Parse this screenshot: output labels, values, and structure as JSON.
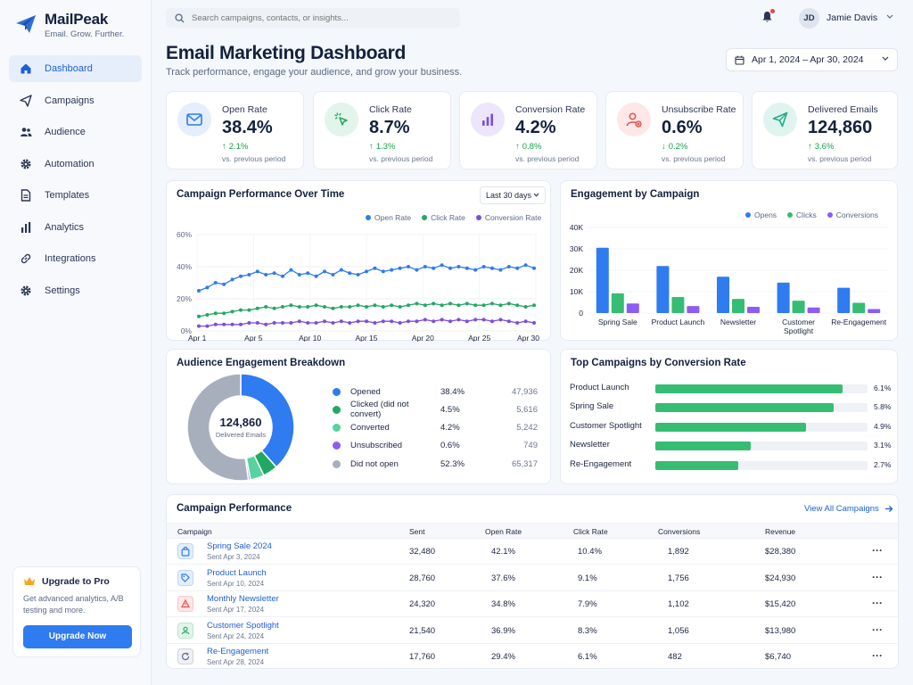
{
  "brand": {
    "name": "MailPeak",
    "tagline": "Email. Grow. Further."
  },
  "sidebar": {
    "items": [
      {
        "label": "Dashboard",
        "icon": "home-icon",
        "active": true
      },
      {
        "label": "Campaigns",
        "icon": "send-icon"
      },
      {
        "label": "Audience",
        "icon": "users-icon"
      },
      {
        "label": "Automation",
        "icon": "gear-icon"
      },
      {
        "label": "Templates",
        "icon": "document-icon"
      },
      {
        "label": "Analytics",
        "icon": "bar-chart-icon"
      },
      {
        "label": "Integrations",
        "icon": "link-icon"
      },
      {
        "label": "Settings",
        "icon": "settings-icon"
      }
    ],
    "upgrade": {
      "title": "Upgrade to Pro",
      "description": "Get advanced analytics, A/B testing and more.",
      "button": "Upgrade Now",
      "icon": "crown-icon"
    }
  },
  "header": {
    "search_placeholder": "Search campaigns, contacts, or insights...",
    "user": {
      "initials": "JD",
      "name": "Jamie Davis"
    }
  },
  "page": {
    "title": "Email Marketing Dashboard",
    "subtitle": "Track performance, engage your audience, and grow your business.",
    "date_range": "Apr 1, 2024 – Apr 30, 2024"
  },
  "kpis": [
    {
      "label": "Open Rate",
      "value": "38.4%",
      "delta": "2.1%",
      "direction": "up",
      "note": "vs. previous period",
      "icon": "envelope-icon",
      "color": "#2f7bf0",
      "bg": "#e4eefc"
    },
    {
      "label": "Click Rate",
      "value": "8.7%",
      "delta": "1.3%",
      "direction": "up",
      "note": "vs. previous period",
      "icon": "cursor-click-icon",
      "color": "#22a862",
      "bg": "#e2f5ea"
    },
    {
      "label": "Conversion Rate",
      "value": "4.2%",
      "delta": "0.8%",
      "direction": "up",
      "note": "vs. previous period",
      "icon": "bar-chart-icon",
      "color": "#7c4ddc",
      "bg": "#ede6fb"
    },
    {
      "label": "Unsubscribe Rate",
      "value": "0.6%",
      "delta": "0.2%",
      "direction": "down",
      "note": "vs. previous period",
      "icon": "user-remove-icon",
      "color": "#e04f4f",
      "bg": "#fde7e7"
    },
    {
      "label": "Delivered Emails",
      "value": "124,860",
      "delta": "3.6%",
      "direction": "up",
      "note": "vs. previous period",
      "icon": "paper-plane-icon",
      "color": "#1fae8a",
      "bg": "#dff4ee"
    }
  ],
  "performance": {
    "title": "Campaign Performance Over Time",
    "range_select": "Last 30 days",
    "chart_data": {
      "type": "line",
      "title": "Campaign Performance Over Time",
      "x_ticks": [
        "Apr 1",
        "Apr 5",
        "Apr 10",
        "Apr 15",
        "Apr 20",
        "Apr 25",
        "Apr 30"
      ],
      "y_ticks": [
        "0%",
        "20%",
        "40%",
        "60%"
      ],
      "ylim": [
        0,
        60
      ],
      "series": [
        {
          "name": "Open Rate",
          "color": "#2f7bf0",
          "values": [
            25,
            27,
            30,
            29,
            32,
            34,
            35,
            37,
            35,
            36,
            34,
            38,
            35,
            36,
            34,
            37,
            35,
            38,
            36,
            35,
            37,
            39,
            37,
            38,
            39,
            40,
            38,
            40,
            39,
            41,
            39,
            40,
            39,
            38,
            40,
            39,
            38,
            40,
            39,
            41,
            39
          ]
        },
        {
          "name": "Click Rate",
          "color": "#22a862",
          "values": [
            9,
            10,
            11,
            11,
            12,
            13,
            13,
            14,
            15,
            14,
            15,
            16,
            15,
            15,
            16,
            15,
            14,
            15,
            15,
            16,
            15,
            16,
            15,
            16,
            15,
            16,
            17,
            16,
            17,
            16,
            17,
            16,
            17,
            16,
            16,
            17,
            16,
            17,
            16,
            15,
            16
          ]
        },
        {
          "name": "Conversion Rate",
          "color": "#7c4ddc",
          "values": [
            3,
            3,
            4,
            4,
            4,
            4,
            5,
            5,
            4,
            5,
            5,
            5,
            6,
            5,
            5,
            6,
            5,
            6,
            5,
            6,
            6,
            5,
            6,
            6,
            5,
            6,
            6,
            7,
            6,
            7,
            6,
            7,
            6,
            7,
            7,
            6,
            7,
            6,
            5,
            6,
            5
          ]
        }
      ]
    }
  },
  "engagement": {
    "title": "Engagement by Campaign",
    "chart_data": {
      "type": "bar",
      "title": "Engagement by Campaign",
      "categories": [
        "Spring Sale",
        "Product Launch",
        "Newsletter",
        "Customer Spotlight",
        "Re-Engagement"
      ],
      "y_ticks": [
        "0",
        "10K",
        "20K",
        "30K",
        "40K"
      ],
      "ylim": [
        0,
        40000
      ],
      "series": [
        {
          "name": "Opens",
          "color": "#2f7bf0",
          "values": [
            30500,
            22000,
            17000,
            14200,
            11800
          ]
        },
        {
          "name": "Clicks",
          "color": "#36bd73",
          "values": [
            9200,
            7500,
            6600,
            5800,
            4800
          ]
        },
        {
          "name": "Conversions",
          "color": "#8b5cf6",
          "values": [
            4500,
            3300,
            2900,
            2600,
            1900
          ]
        }
      ]
    }
  },
  "breakdown": {
    "title": "Audience Engagement Breakdown",
    "center_value": "124,860",
    "center_label": "Delivered Emails",
    "chart_data": {
      "type": "pie",
      "title": "Audience Engagement Breakdown",
      "slices": [
        {
          "label": "Opened",
          "pct": "38.4%",
          "value": 47936,
          "count": "47,936",
          "color": "#2f7bf0"
        },
        {
          "label": "Clicked (did not convert)",
          "pct": "4.5%",
          "value": 5616,
          "count": "5,616",
          "color": "#22a862"
        },
        {
          "label": "Converted",
          "pct": "4.2%",
          "value": 5242,
          "count": "5,242",
          "color": "#56d3a0"
        },
        {
          "label": "Unsubscribed",
          "pct": "0.6%",
          "value": 749,
          "count": "749",
          "color": "#8b5cf6"
        },
        {
          "label": "Did not open",
          "pct": "52.3%",
          "value": 65317,
          "count": "65,317",
          "color": "#a7afbd"
        }
      ]
    }
  },
  "top_campaigns": {
    "title": "Top Campaigns by Conversion Rate",
    "chart_data": {
      "type": "bar",
      "orientation": "horizontal",
      "xlim": [
        0,
        6.9
      ],
      "categories": [
        "Product Launch",
        "Spring Sale",
        "Customer Spotlight",
        "Newsletter",
        "Re-Engagement"
      ],
      "values": [
        6.1,
        5.8,
        4.9,
        3.1,
        2.7
      ],
      "labels": [
        "6.1%",
        "5.8%",
        "4.9%",
        "3.1%",
        "2.7%"
      ],
      "color": "#36bd73"
    }
  },
  "table": {
    "title": "Campaign Performance",
    "view_all": "View All Campaigns",
    "columns": [
      "Campaign",
      "Sent",
      "Open Rate",
      "Click Rate",
      "Conversions",
      "Revenue"
    ],
    "rows": [
      {
        "name": "Spring Sale 2024",
        "date": "Sent Apr 3, 2024",
        "sent": "32,480",
        "open": "42.1%",
        "click": "10.4%",
        "conv": "1,892",
        "revenue": "$28,380",
        "icon": "shopping-bag-icon",
        "icon_color": "#2f7bf0",
        "icon_bg": "#e4eefc"
      },
      {
        "name": "Product Launch",
        "date": "Sent Apr 10, 2024",
        "sent": "28,760",
        "open": "37.6%",
        "click": "9.1%",
        "conv": "1,756",
        "revenue": "$24,930",
        "icon": "tag-icon",
        "icon_color": "#2f7bf0",
        "icon_bg": "#e4eefc"
      },
      {
        "name": "Monthly Newsletter",
        "date": "Sent Apr 17, 2024",
        "sent": "24,320",
        "open": "34.8%",
        "click": "7.9%",
        "conv": "1,102",
        "revenue": "$15,420",
        "icon": "newsletter-icon",
        "icon_color": "#e04f4f",
        "icon_bg": "#fde7e7"
      },
      {
        "name": "Customer Spotlight",
        "date": "Sent Apr 24, 2024",
        "sent": "21,540",
        "open": "36.9%",
        "click": "8.3%",
        "conv": "1,056",
        "revenue": "$13,980",
        "icon": "user-icon",
        "icon_color": "#22a862",
        "icon_bg": "#e2f5ea"
      },
      {
        "name": "Re-Engagement",
        "date": "Sent Apr 28, 2024",
        "sent": "17,760",
        "open": "29.4%",
        "click": "6.1%",
        "conv": "482",
        "revenue": "$6,740",
        "icon": "refresh-icon",
        "icon_color": "#5b6a84",
        "icon_bg": "#eef1f6"
      }
    ],
    "more_label": "···"
  }
}
